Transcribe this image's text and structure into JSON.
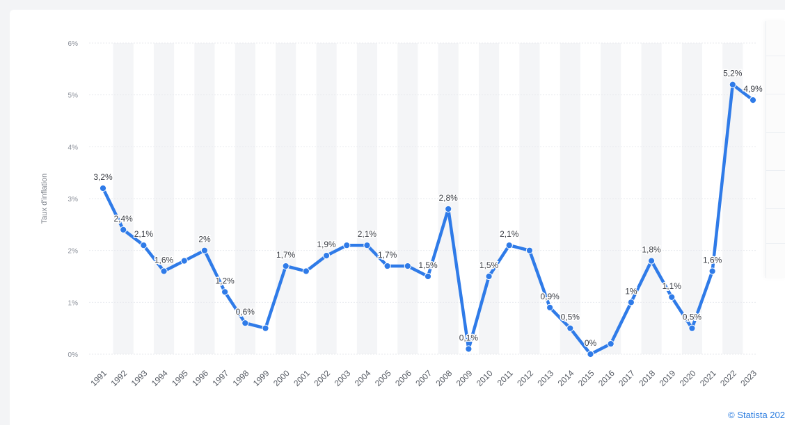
{
  "chart_data": {
    "type": "line",
    "title": "",
    "ylabel": "Taux d'inflation",
    "xlabel": "",
    "x": [
      "1991",
      "1992",
      "1993",
      "1994",
      "1995",
      "1996",
      "1997",
      "1998",
      "1999",
      "2000",
      "2001",
      "2002",
      "2003",
      "2004",
      "2005",
      "2006",
      "2007",
      "2008",
      "2009",
      "2010",
      "2011",
      "2012",
      "2013",
      "2014",
      "2015",
      "2016",
      "2017",
      "2018",
      "2019",
      "2020",
      "2021",
      "2022",
      "2023"
    ],
    "series": [
      {
        "values": [
          3.2,
          2.4,
          2.1,
          1.6,
          1.8,
          2.0,
          1.2,
          0.6,
          0.5,
          1.7,
          1.6,
          1.9,
          2.1,
          2.1,
          1.7,
          1.7,
          1.5,
          2.8,
          0.1,
          1.5,
          2.1,
          2.0,
          0.9,
          0.5,
          0.0,
          0.2,
          1.0,
          1.8,
          1.1,
          0.5,
          1.6,
          5.2,
          4.9
        ],
        "color": "#2f7be8"
      }
    ],
    "data_labels": {
      "1991": "3,2%",
      "1992": "2,4%",
      "1993": "2,1%",
      "1994": "1,6%",
      "1996": "2%",
      "1997": "1,2%",
      "1998": "0,6%",
      "2000": "1,7%",
      "2002": "1,9%",
      "2004": "2,1%",
      "2005": "1,7%",
      "2007": "1,5%",
      "2008": "2,8%",
      "2009": "0,1%",
      "2010": "1,5%",
      "2011": "2,1%",
      "2013": "0,9%",
      "2014": "0,5%",
      "2015": "0%",
      "2017": "1%",
      "2018": "1,8%",
      "2019": "1,1%",
      "2020": "0,5%",
      "2021": "1,6%",
      "2022": "5,2%",
      "2023": "4,9%"
    },
    "ylim": [
      0,
      6
    ],
    "yticks": [
      "0%",
      "1%",
      "2%",
      "3%",
      "4%",
      "5%",
      "6%"
    ],
    "grid": true
  },
  "credit": "© Statista 202"
}
